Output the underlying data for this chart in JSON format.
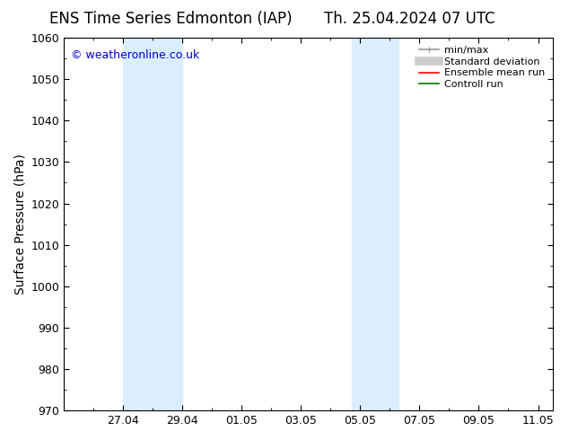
{
  "title_left": "ENS Time Series Edmonton (IAP)",
  "title_right": "Th. 25.04.2024 07 UTC",
  "ylabel": "Surface Pressure (hPa)",
  "ylim": [
    970,
    1060
  ],
  "yticks": [
    970,
    980,
    990,
    1000,
    1010,
    1020,
    1030,
    1040,
    1050,
    1060
  ],
  "xlim": [
    0,
    16.5
  ],
  "xtick_labels": [
    "27.04",
    "29.04",
    "01.05",
    "03.05",
    "05.05",
    "07.05",
    "09.05",
    "11.05"
  ],
  "xtick_positions": [
    2,
    4,
    6,
    8,
    10,
    12,
    14,
    16
  ],
  "shaded_bands": [
    {
      "x_start": 2.0,
      "x_end": 4.0,
      "color": "#daeeff"
    },
    {
      "x_start": 9.7,
      "x_end": 11.3,
      "color": "#daeeff"
    }
  ],
  "background_color": "#ffffff",
  "plot_bg_color": "#ffffff",
  "tick_color": "#000000",
  "spine_color": "#000000",
  "watermark_text": "© weatheronline.co.uk",
  "watermark_color": "#0000cc",
  "legend_labels": [
    "min/max",
    "Standard deviation",
    "Ensemble mean run",
    "Controll run"
  ],
  "legend_colors": [
    "#999999",
    "#cccccc",
    "#ff0000",
    "#007700"
  ],
  "legend_lws": [
    1.2,
    7,
    1.2,
    1.2
  ],
  "title_fontsize": 12,
  "axis_label_fontsize": 10,
  "tick_fontsize": 9,
  "legend_fontsize": 8
}
